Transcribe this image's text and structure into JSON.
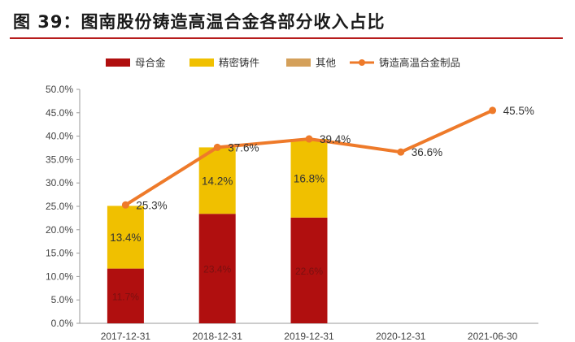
{
  "header": {
    "title": "图 39：图南股份铸造高温合金各部分收入占比"
  },
  "chart_data": {
    "type": "bar",
    "stacked": true,
    "categories": [
      "2017-12-31",
      "2018-12-31",
      "2019-12-31",
      "2020-12-31",
      "2021-06-30"
    ],
    "ylim": [
      0,
      50
    ],
    "y_ticks": [
      "0.0%",
      "5.0%",
      "10.0%",
      "15.0%",
      "20.0%",
      "25.0%",
      "30.0%",
      "35.0%",
      "40.0%",
      "45.0%",
      "50.0%"
    ],
    "legend_position": "top",
    "grid": false,
    "series": [
      {
        "name": "母合金",
        "kind": "bar",
        "color": "#b00f0f",
        "values": [
          11.7,
          23.4,
          22.6,
          null,
          null
        ],
        "labels": [
          "11.7%",
          "23.4%",
          "22.6%",
          "",
          ""
        ]
      },
      {
        "name": "精密铸件",
        "kind": "bar",
        "color": "#f0c000",
        "values": [
          13.4,
          14.2,
          16.8,
          null,
          null
        ],
        "labels": [
          "13.4%",
          "14.2%",
          "16.8%",
          "",
          ""
        ]
      },
      {
        "name": "其他",
        "kind": "bar",
        "color": "#d4a05a",
        "values": [
          0,
          0,
          0,
          null,
          null
        ],
        "labels": [
          "",
          "",
          "",
          "",
          ""
        ]
      },
      {
        "name": "铸造高温合金制品",
        "kind": "line",
        "color": "#ee7a2a",
        "values": [
          25.3,
          37.6,
          39.4,
          36.6,
          45.5
        ],
        "labels": [
          "25.3%",
          "37.6%",
          "39.4%",
          "36.6%",
          "45.5%"
        ]
      }
    ]
  }
}
